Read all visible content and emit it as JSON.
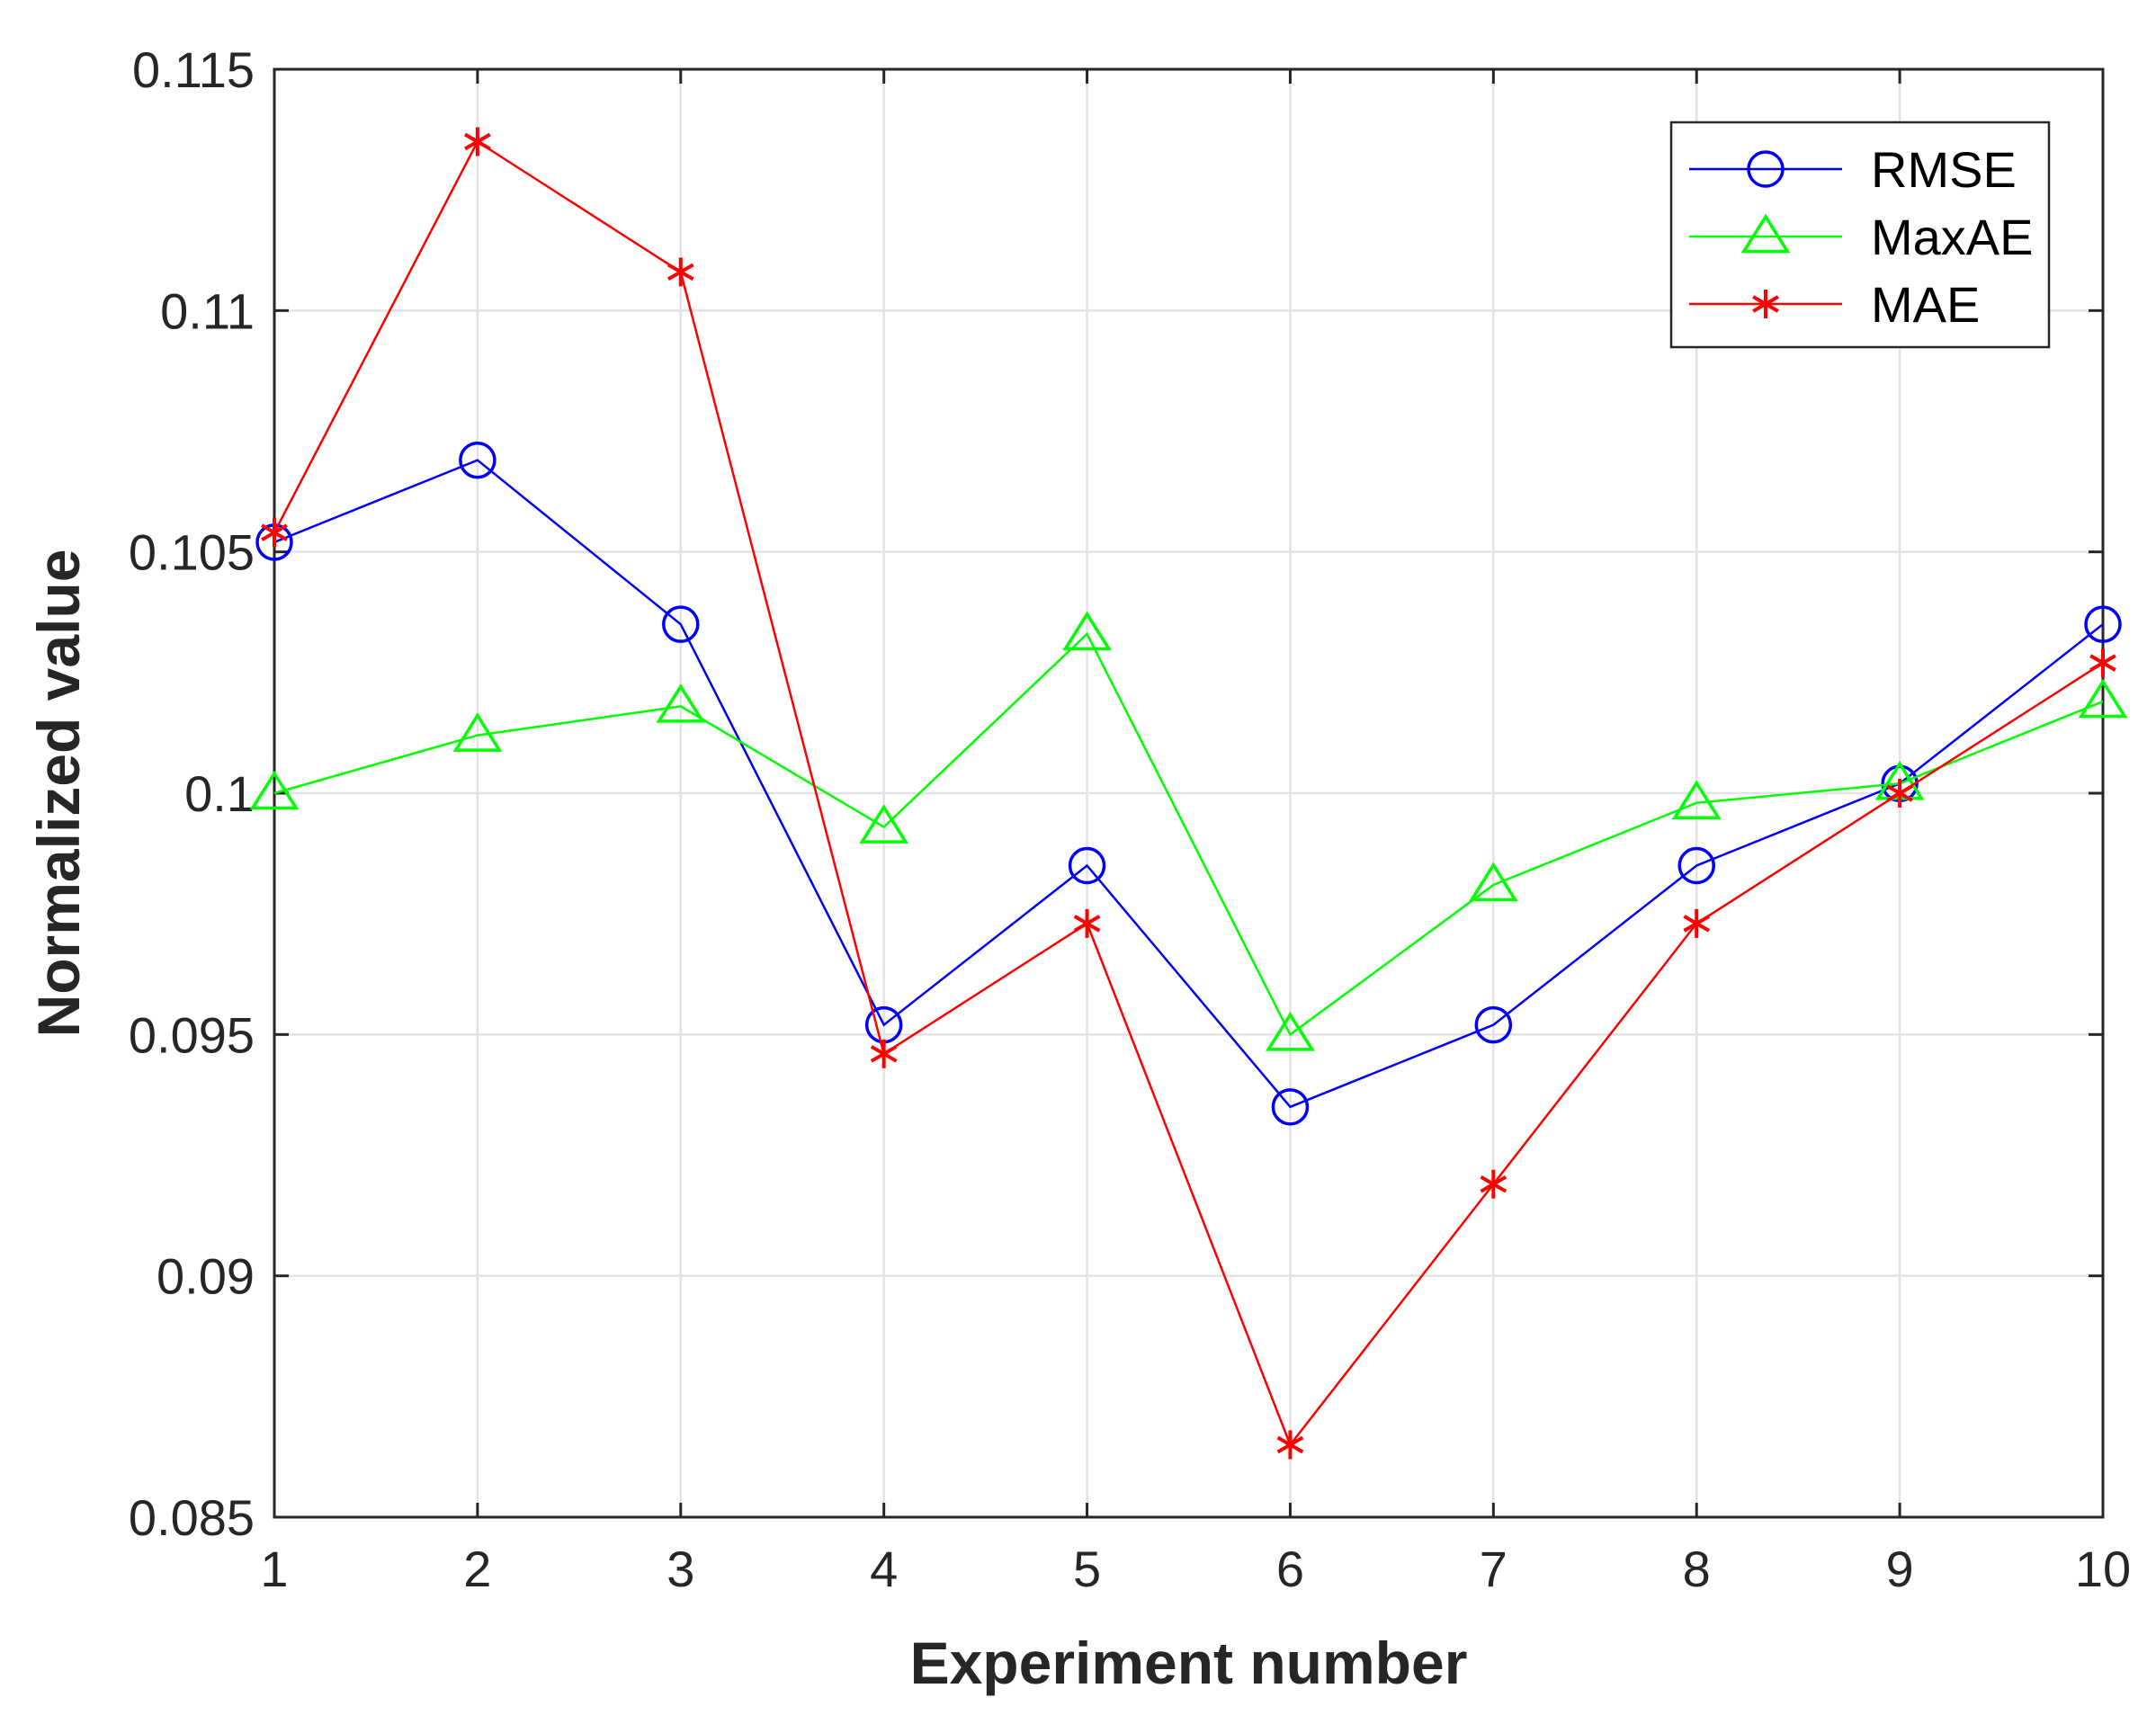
{
  "chart_data": {
    "type": "line",
    "title": "",
    "xlabel": "Experiment number",
    "ylabel": "Normalized value",
    "xlim": [
      1,
      10
    ],
    "ylim": [
      0.085,
      0.115
    ],
    "grid": true,
    "legend_position": "top-right",
    "x": [
      1,
      2,
      3,
      4,
      5,
      6,
      7,
      8,
      9,
      10
    ],
    "x_ticks": [
      1,
      2,
      3,
      4,
      5,
      6,
      7,
      8,
      9,
      10
    ],
    "x_tick_labels": [
      "1",
      "2",
      "3",
      "4",
      "5",
      "6",
      "7",
      "8",
      "9",
      "10"
    ],
    "y_ticks": [
      0.085,
      0.09,
      0.095,
      0.1,
      0.105,
      0.11,
      0.115
    ],
    "y_tick_labels": [
      "0.085",
      "0.09",
      "0.095",
      "0.1",
      "0.105",
      "0.11",
      "0.115"
    ],
    "series": [
      {
        "name": "RMSE",
        "key": "rmse",
        "marker": "circle",
        "color": "#0000FF",
        "values": [
          0.1052,
          0.1069,
          0.1035,
          0.0952,
          0.0985,
          0.0935,
          0.0952,
          0.0985,
          0.1002,
          0.1035
        ]
      },
      {
        "name": "MaxAE",
        "key": "maxae",
        "marker": "triangle",
        "color": "#00FF00",
        "values": [
          0.1,
          0.1012,
          0.1018,
          0.0993,
          0.1033,
          0.095,
          0.0981,
          0.0998,
          0.1002,
          0.1019
        ]
      },
      {
        "name": "MAE",
        "key": "mae",
        "marker": "asterisk",
        "color": "#FF0000",
        "values": [
          0.1054,
          0.1135,
          0.1108,
          0.0946,
          0.0973,
          0.0865,
          0.0919,
          0.0973,
          0.1,
          0.1027
        ]
      }
    ]
  }
}
